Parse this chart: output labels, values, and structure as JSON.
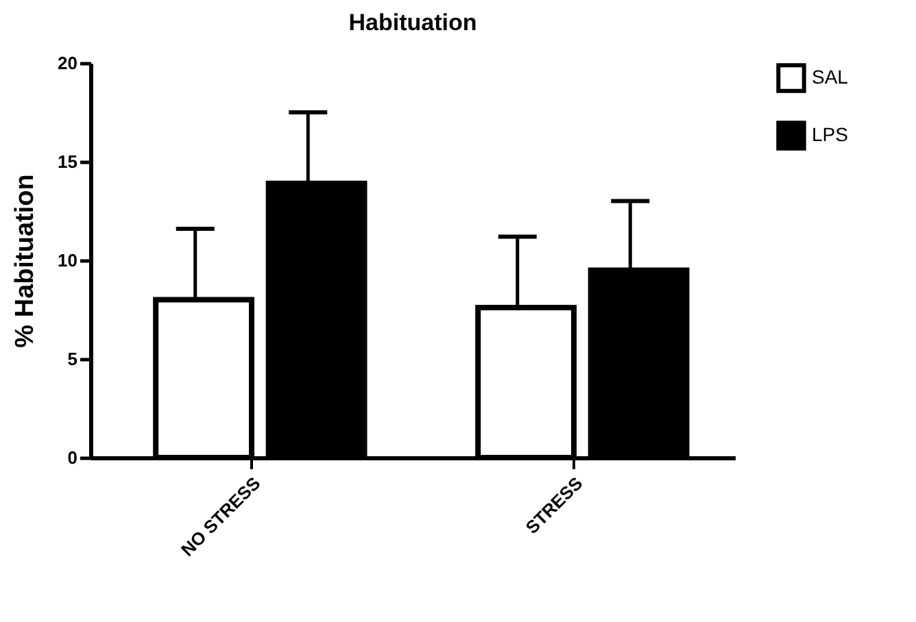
{
  "chart_data": {
    "type": "bar",
    "title": "Habituation",
    "ylabel": "% Habituation",
    "categories": [
      "NO STRESS",
      "STRESS"
    ],
    "series": [
      {
        "name": "SAL",
        "color": "#ffffff",
        "values": [
          8.0,
          7.6
        ],
        "errors": [
          3.6,
          3.6
        ]
      },
      {
        "name": "LPS",
        "color": "#000000",
        "values": [
          13.9,
          9.5
        ],
        "errors": [
          3.6,
          3.5
        ]
      }
    ],
    "ylim": [
      0,
      20
    ],
    "yticks": [
      0,
      5,
      10,
      15,
      20
    ],
    "grid": false,
    "legend": "top right"
  }
}
